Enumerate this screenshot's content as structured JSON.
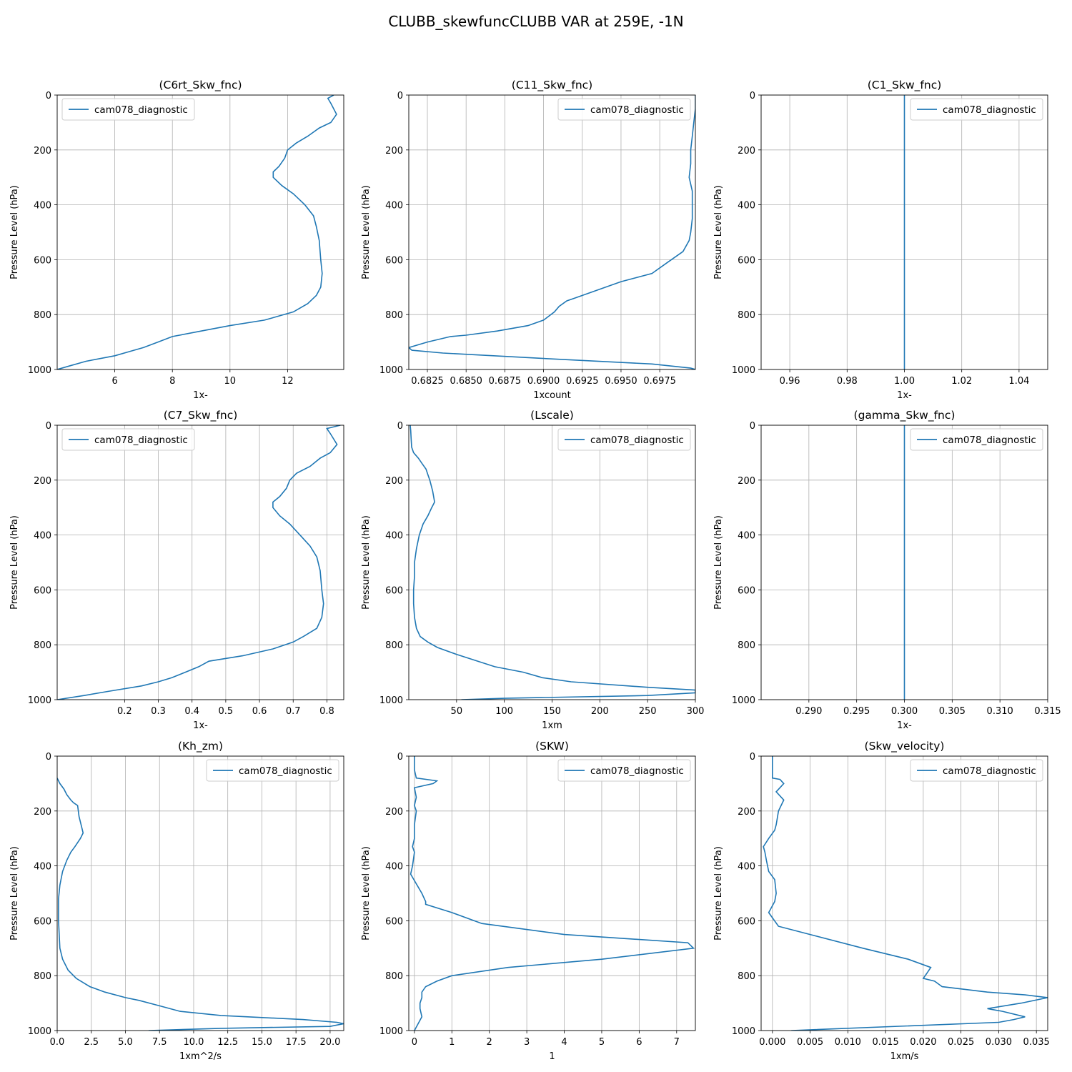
{
  "figure_title": "CLUBB_skewfuncCLUBB VAR at 259E, -1N",
  "line_color": "#1f77b4",
  "chart_data": [
    {
      "type": "line",
      "title": "(C6rt_Skw_fnc)",
      "xlabel": "1x-",
      "ylabel": "Pressure Level (hPa)",
      "xlim": [
        4.0,
        13.95
      ],
      "ylim": [
        1000,
        0
      ],
      "xticks": [
        6,
        8,
        10,
        12
      ],
      "xtick_labels": [
        "6",
        "8",
        "10",
        "12"
      ],
      "yticks": [
        0,
        200,
        400,
        600,
        800,
        1000
      ],
      "grid": true,
      "legend": "top-left",
      "series": [
        {
          "name": "cam078_diagnostic",
          "x": [
            13.6,
            13.4,
            13.5,
            13.7,
            13.5,
            13.1,
            12.7,
            12.3,
            12.0,
            11.9,
            11.7,
            11.5,
            11.5,
            11.8,
            12.2,
            12.6,
            12.9,
            13.0,
            13.1,
            13.15,
            13.2,
            13.15,
            13.0,
            12.7,
            12.2,
            11.2,
            10.0,
            9.0,
            8.0,
            7.5,
            7.0,
            6.5,
            6.0,
            5.0,
            4.5,
            4.0
          ],
          "y": [
            0,
            12,
            30,
            70,
            100,
            120,
            150,
            175,
            200,
            230,
            260,
            280,
            300,
            330,
            360,
            400,
            440,
            480,
            530,
            600,
            650,
            700,
            730,
            760,
            790,
            820,
            840,
            860,
            880,
            900,
            920,
            935,
            950,
            970,
            985,
            1000
          ]
        }
      ]
    },
    {
      "type": "line",
      "title": "(C11_Skw_fnc)",
      "xlabel": "1xcount",
      "ylabel": "Pressure Level (hPa)",
      "xlim": [
        0.6813,
        0.6998
      ],
      "ylim": [
        1000,
        0
      ],
      "xticks": [
        0.6825,
        0.685,
        0.6875,
        0.69,
        0.6925,
        0.695,
        0.6975
      ],
      "xtick_labels": [
        "0.6825",
        "0.6850",
        "0.6875",
        "0.6900",
        "0.6925",
        "0.6950",
        "0.6975"
      ],
      "yticks": [
        0,
        200,
        400,
        600,
        800,
        1000
      ],
      "grid": true,
      "legend": "top-right",
      "series": [
        {
          "name": "cam078_diagnostic",
          "x": [
            0.6998,
            0.6998,
            0.6997,
            0.6996,
            0.6995,
            0.6995,
            0.6994,
            0.6996,
            0.6996,
            0.6996,
            0.6995,
            0.6994,
            0.699,
            0.698,
            0.697,
            0.695,
            0.692,
            0.6915,
            0.691,
            0.6907,
            0.69,
            0.689,
            0.687,
            0.685,
            0.684,
            0.6825,
            0.6813,
            0.6815,
            0.6835,
            0.69,
            0.697,
            0.6995,
            0.6998
          ],
          "y": [
            0,
            50,
            100,
            150,
            200,
            250,
            300,
            350,
            400,
            450,
            500,
            530,
            570,
            610,
            650,
            680,
            740,
            750,
            770,
            790,
            820,
            840,
            860,
            875,
            880,
            900,
            920,
            930,
            940,
            960,
            980,
            995,
            1000
          ]
        }
      ]
    },
    {
      "type": "line",
      "title": "(C1_Skw_fnc)",
      "xlabel": "1x-",
      "ylabel": "Pressure Level (hPa)",
      "xlim": [
        0.95,
        1.05
      ],
      "ylim": [
        1000,
        0
      ],
      "xticks": [
        0.96,
        0.98,
        1.0,
        1.02,
        1.04
      ],
      "xtick_labels": [
        "0.96",
        "0.98",
        "1.00",
        "1.02",
        "1.04"
      ],
      "yticks": [
        0,
        200,
        400,
        600,
        800,
        1000
      ],
      "grid": true,
      "legend": "top-right",
      "series": [
        {
          "name": "cam078_diagnostic",
          "x": [
            1.0,
            1.0
          ],
          "y": [
            0,
            1000
          ]
        }
      ]
    },
    {
      "type": "line",
      "title": "(C7_Skw_fnc)",
      "xlabel": "1x-",
      "ylabel": "Pressure Level (hPa)",
      "xlim": [
        0.0,
        0.85
      ],
      "ylim": [
        1000,
        0
      ],
      "xticks": [
        0.2,
        0.3,
        0.4,
        0.5,
        0.6,
        0.7,
        0.8
      ],
      "xtick_labels": [
        "0.2",
        "0.3",
        "0.4",
        "0.5",
        "0.6",
        "0.7",
        "0.8"
      ],
      "yticks": [
        0,
        200,
        400,
        600,
        800,
        1000
      ],
      "grid": true,
      "legend": "top-left",
      "series": [
        {
          "name": "cam078_diagnostic",
          "x": [
            0.84,
            0.8,
            0.81,
            0.83,
            0.81,
            0.78,
            0.75,
            0.71,
            0.69,
            0.68,
            0.66,
            0.64,
            0.64,
            0.66,
            0.69,
            0.72,
            0.75,
            0.77,
            0.78,
            0.785,
            0.79,
            0.785,
            0.77,
            0.73,
            0.7,
            0.64,
            0.55,
            0.45,
            0.42,
            0.38,
            0.34,
            0.3,
            0.25,
            0.15,
            0.08,
            0.0
          ],
          "y": [
            0,
            12,
            30,
            70,
            100,
            120,
            150,
            175,
            200,
            230,
            260,
            280,
            300,
            330,
            360,
            400,
            440,
            480,
            530,
            600,
            650,
            700,
            740,
            770,
            790,
            815,
            840,
            860,
            880,
            900,
            920,
            935,
            950,
            970,
            985,
            1000
          ]
        }
      ]
    },
    {
      "type": "line",
      "title": "(Lscale)",
      "xlabel": "1xm",
      "ylabel": "Pressure Level (hPa)",
      "xlim": [
        0,
        300
      ],
      "ylim": [
        1000,
        0
      ],
      "xticks": [
        50,
        100,
        150,
        200,
        250,
        300
      ],
      "xtick_labels": [
        "50",
        "100",
        "150",
        "200",
        "250",
        "300"
      ],
      "yticks": [
        0,
        200,
        400,
        600,
        800,
        1000
      ],
      "grid": true,
      "legend": "top-right",
      "series": [
        {
          "name": "cam078_diagnostic",
          "x": [
            1.5,
            2.0,
            2.5,
            3.0,
            5.0,
            10.0,
            14.0,
            18.0,
            20.0,
            22.0,
            25.0,
            27.0,
            24.0,
            20.0,
            15.0,
            11.0,
            8.0,
            6.0,
            6.0,
            5.0,
            5.0,
            6.0,
            8.0,
            12.0,
            20.0,
            30.0,
            50.0,
            90.0,
            120.0,
            140.0,
            170.0,
            250.0,
            300.0,
            300.0,
            250.0,
            100.0,
            55.0
          ],
          "y": [
            0,
            20,
            50,
            80,
            100,
            120,
            140,
            160,
            180,
            200,
            240,
            280,
            300,
            330,
            360,
            400,
            450,
            500,
            550,
            600,
            650,
            700,
            740,
            770,
            790,
            810,
            835,
            880,
            900,
            920,
            935,
            955,
            965,
            975,
            985,
            995,
            1000
          ]
        }
      ]
    },
    {
      "type": "line",
      "title": "(gamma_Skw_fnc)",
      "xlabel": "1x-",
      "ylabel": "Pressure Level (hPa)",
      "xlim": [
        0.285,
        0.315
      ],
      "ylim": [
        1000,
        0
      ],
      "xticks": [
        0.29,
        0.295,
        0.3,
        0.305,
        0.31,
        0.315
      ],
      "xtick_labels": [
        "0.290",
        "0.295",
        "0.300",
        "0.305",
        "0.310",
        "0.315"
      ],
      "yticks": [
        0,
        200,
        400,
        600,
        800,
        1000
      ],
      "grid": true,
      "legend": "top-right",
      "series": [
        {
          "name": "cam078_diagnostic",
          "x": [
            0.3,
            0.3
          ],
          "y": [
            0,
            1000
          ]
        }
      ]
    },
    {
      "type": "line",
      "title": "(Kh_zm)",
      "xlabel": "1xm^2/s",
      "ylabel": "Pressure Level (hPa)",
      "xlim": [
        0,
        21
      ],
      "ylim": [
        1000,
        0
      ],
      "xticks": [
        0,
        2.5,
        5,
        7.5,
        10,
        12.5,
        15,
        17.5,
        20
      ],
      "xtick_labels": [
        "0.0",
        "2.5",
        "5.0",
        "7.5",
        "10.0",
        "12.5",
        "15.0",
        "17.5",
        "20.0"
      ],
      "yticks": [
        0,
        200,
        400,
        600,
        800,
        1000
      ],
      "grid": true,
      "legend": "top-right",
      "series": [
        {
          "name": "cam078_diagnostic",
          "x": [
            0.0,
            0.2,
            0.5,
            0.7,
            1.0,
            1.2,
            1.5,
            1.6,
            1.8,
            1.9,
            1.7,
            1.3,
            1.0,
            0.7,
            0.4,
            0.2,
            0.1,
            0.1,
            0.2,
            0.4,
            0.8,
            1.4,
            2.4,
            3.5,
            5.0,
            6.0,
            7.5,
            9.0,
            12.0,
            18.0,
            20.5,
            21.0,
            20.0,
            12.0,
            6.7
          ],
          "y": [
            80,
            100,
            120,
            140,
            160,
            170,
            180,
            220,
            260,
            280,
            300,
            330,
            350,
            380,
            420,
            470,
            520,
            600,
            700,
            740,
            780,
            810,
            840,
            860,
            880,
            890,
            910,
            930,
            945,
            960,
            970,
            975,
            985,
            992,
            1000
          ]
        }
      ]
    },
    {
      "type": "line",
      "title": "(SKW)",
      "xlabel": "1",
      "ylabel": "Pressure Level (hPa)",
      "xlim": [
        -0.15,
        7.5
      ],
      "ylim": [
        1000,
        0
      ],
      "xticks": [
        0,
        1,
        2,
        3,
        4,
        5,
        6,
        7
      ],
      "xtick_labels": [
        "0",
        "1",
        "2",
        "3",
        "4",
        "5",
        "6",
        "7"
      ],
      "yticks": [
        0,
        200,
        400,
        600,
        800,
        1000
      ],
      "grid": true,
      "legend": "top-right",
      "series": [
        {
          "name": "cam078_diagnostic",
          "x": [
            0.0,
            0.0,
            0.05,
            0.6,
            0.5,
            0.0,
            0.05,
            0.0,
            0.05,
            0.0,
            0.0,
            -0.05,
            0.0,
            -0.05,
            -0.1,
            0.2,
            0.3,
            0.3,
            1.0,
            1.8,
            4.0,
            7.3,
            7.45,
            5.0,
            2.5,
            1.0,
            0.6,
            0.3,
            0.2,
            0.2,
            0.15,
            0.15,
            0.2,
            0.1,
            0.0
          ],
          "y": [
            0,
            50,
            80,
            90,
            100,
            115,
            150,
            180,
            200,
            250,
            300,
            330,
            350,
            400,
            430,
            500,
            530,
            540,
            570,
            610,
            650,
            680,
            700,
            740,
            770,
            800,
            820,
            840,
            860,
            880,
            900,
            920,
            950,
            975,
            1000
          ]
        }
      ]
    },
    {
      "type": "line",
      "title": "(Skw_velocity)",
      "xlabel": "1xm/s",
      "ylabel": "Pressure Level (hPa)",
      "xlim": [
        -0.0015,
        0.0365
      ],
      "ylim": [
        1000,
        0
      ],
      "xticks": [
        0.0,
        0.005,
        0.01,
        0.015,
        0.02,
        0.025,
        0.03,
        0.035
      ],
      "xtick_labels": [
        "0.000",
        "0.005",
        "0.010",
        "0.015",
        "0.020",
        "0.025",
        "0.030",
        "0.035"
      ],
      "yticks": [
        0,
        200,
        400,
        600,
        800,
        1000
      ],
      "grid": true,
      "legend": "top-right",
      "series": [
        {
          "name": "cam078_diagnostic",
          "x": [
            0.0,
            0.0,
            0.0,
            0.001,
            0.0015,
            0.0005,
            0.0015,
            0.0008,
            0.0005,
            0.0003,
            -0.0005,
            -0.0012,
            -0.001,
            -0.0008,
            -0.0005,
            0.0003,
            0.0005,
            0.0003,
            -0.0005,
            0.0008,
            0.005,
            0.012,
            0.018,
            0.021,
            0.0205,
            0.02,
            0.0215,
            0.0225,
            0.0285,
            0.0335,
            0.0365,
            0.033,
            0.0285,
            0.0305,
            0.0335,
            0.032,
            0.03,
            0.0025
          ],
          "y": [
            0,
            50,
            80,
            85,
            100,
            130,
            160,
            200,
            250,
            270,
            300,
            330,
            350,
            380,
            420,
            450,
            500,
            530,
            570,
            620,
            650,
            700,
            740,
            770,
            790,
            810,
            820,
            840,
            860,
            870,
            880,
            900,
            920,
            930,
            950,
            960,
            970,
            1000
          ]
        }
      ]
    }
  ]
}
